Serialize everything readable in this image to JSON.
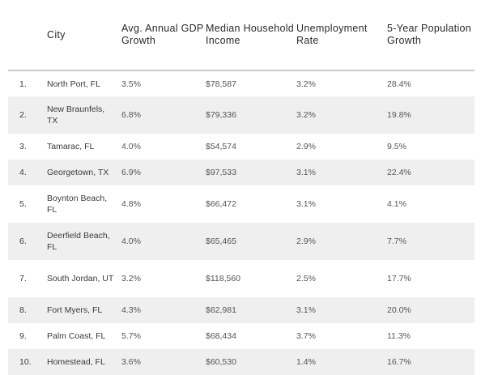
{
  "table": {
    "headers": {
      "rank": "",
      "city": "City",
      "gdp": "Avg. Annual GDP Growth",
      "income": "Median Household Income",
      "unemployment": "Unemployment Rate",
      "population": "5-Year Population Growth"
    },
    "rows": [
      {
        "rank": "1.",
        "city": "North Port, FL",
        "gdp": "3.5%",
        "income": "$78,587",
        "unemployment": "3.2%",
        "population": "28.4%"
      },
      {
        "rank": "2.",
        "city": "New Braunfels, TX",
        "gdp": "6.8%",
        "income": "$79,336",
        "unemployment": "3.2%",
        "population": "19.8%"
      },
      {
        "rank": "3.",
        "city": "Tamarac, FL",
        "gdp": "4.0%",
        "income": "$54,574",
        "unemployment": "2.9%",
        "population": "9.5%"
      },
      {
        "rank": "4.",
        "city": "Georgetown, TX",
        "gdp": "6.9%",
        "income": "$97,533",
        "unemployment": "3.1%",
        "population": "22.4%"
      },
      {
        "rank": "5.",
        "city": "Boynton Beach, FL",
        "gdp": "4.8%",
        "income": "$66,472",
        "unemployment": "3.1%",
        "population": "4.1%"
      },
      {
        "rank": "6.",
        "city": "Deerfield Beach, FL",
        "gdp": "4.0%",
        "income": "$65,465",
        "unemployment": "2.9%",
        "population": "7.7%"
      },
      {
        "rank": "7.",
        "city": "South Jordan, UT",
        "gdp": "3.2%",
        "income": "$118,560",
        "unemployment": "2.5%",
        "population": "17.7%"
      },
      {
        "rank": "8.",
        "city": "Fort Myers, FL",
        "gdp": "4.3%",
        "income": "$62,981",
        "unemployment": "3.1%",
        "population": "20.0%"
      },
      {
        "rank": "9.",
        "city": "Palm Coast, FL",
        "gdp": "5.7%",
        "income": "$68,434",
        "unemployment": "3.7%",
        "population": "11.3%"
      },
      {
        "rank": "10.",
        "city": "Homestead, FL",
        "gdp": "3.6%",
        "income": "$60,530",
        "unemployment": "1.4%",
        "population": "16.7%"
      }
    ]
  }
}
